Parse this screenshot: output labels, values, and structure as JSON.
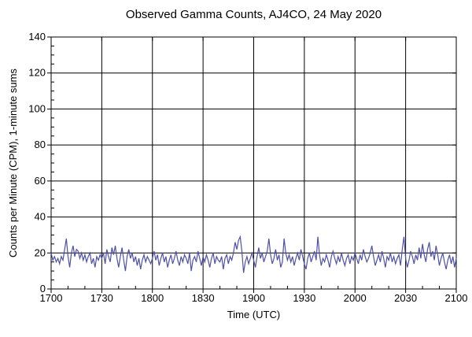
{
  "chart_data": {
    "type": "line",
    "title": "Observed Gamma Counts, AJ4CO, 24 May 2020",
    "xlabel": "Time (UTC)",
    "ylabel": "Counts per Minute (CPM), 1-minute sums",
    "x_unit": "minutes since 1700 UTC, 1 sample per minute",
    "x_range_minutes": [
      0,
      240
    ],
    "ylim": [
      0,
      140
    ],
    "yticks": [
      0,
      20,
      40,
      60,
      80,
      100,
      120,
      140
    ],
    "y_minor_step": 5,
    "xticks": [
      {
        "minute": 0,
        "label": "1700"
      },
      {
        "minute": 30,
        "label": "1730"
      },
      {
        "minute": 60,
        "label": "1800"
      },
      {
        "minute": 90,
        "label": "1830"
      },
      {
        "minute": 120,
        "label": "1900"
      },
      {
        "minute": 150,
        "label": "1930"
      },
      {
        "minute": 180,
        "label": "2000"
      },
      {
        "minute": 210,
        "label": "2030"
      },
      {
        "minute": 240,
        "label": "2100"
      }
    ],
    "x_minor_step": 10,
    "grid": true,
    "legend": "none",
    "series": [
      {
        "name": "Observed gamma counts (CPM), 1-minute sums",
        "color": "#4e51a8",
        "values": [
          20,
          16,
          18,
          15,
          17,
          14,
          18,
          16,
          22,
          28,
          18,
          12,
          20,
          24,
          18,
          22,
          21,
          17,
          20,
          16,
          19,
          15,
          18,
          20,
          14,
          17,
          12,
          18,
          16,
          19,
          17,
          20,
          14,
          22,
          18,
          15,
          23,
          19,
          24,
          17,
          12,
          18,
          23,
          16,
          10,
          18,
          22,
          17,
          20,
          15,
          18,
          13,
          17,
          11,
          16,
          19,
          15,
          18,
          16,
          14,
          17,
          21,
          16,
          19,
          13,
          17,
          20,
          15,
          18,
          12,
          16,
          19,
          14,
          17,
          21,
          16,
          13,
          18,
          15,
          19,
          17,
          14,
          20,
          10,
          16,
          18,
          15,
          21,
          17,
          13,
          18,
          15,
          19,
          16,
          12,
          17,
          20,
          14,
          18,
          16,
          15,
          18,
          11,
          17,
          19,
          14,
          18,
          16,
          20,
          26,
          22,
          27,
          29,
          21,
          9,
          15,
          18,
          14,
          17,
          20,
          16,
          12,
          18,
          23,
          17,
          20,
          15,
          18,
          21,
          28,
          19,
          14,
          17,
          22,
          16,
          19,
          12,
          15,
          28,
          20,
          16,
          19,
          15,
          18,
          13,
          17,
          20,
          16,
          22,
          18,
          14,
          11,
          17,
          20,
          15,
          18,
          21,
          16,
          29,
          19,
          13,
          17,
          15,
          19,
          16,
          12,
          18,
          21,
          17,
          14,
          18,
          15,
          20,
          16,
          13,
          17,
          19,
          14,
          18,
          16,
          20,
          17,
          14,
          19,
          16,
          22,
          18,
          15,
          17,
          20,
          24,
          18,
          13,
          16,
          19,
          15,
          21,
          17,
          12,
          18,
          16,
          20,
          15,
          18,
          14,
          17,
          19,
          13,
          22,
          29,
          17,
          12,
          16,
          21,
          18,
          14,
          19,
          16,
          23,
          17,
          25,
          19,
          15,
          22,
          26,
          18,
          21,
          16,
          24,
          19,
          13,
          17,
          20,
          15,
          11,
          16,
          19,
          14,
          18,
          12,
          17
        ]
      }
    ]
  },
  "colors": {
    "line": "#4e51a8",
    "grid": "#000000",
    "axis": "#000000",
    "background": "#ffffff",
    "text": "#000000"
  }
}
